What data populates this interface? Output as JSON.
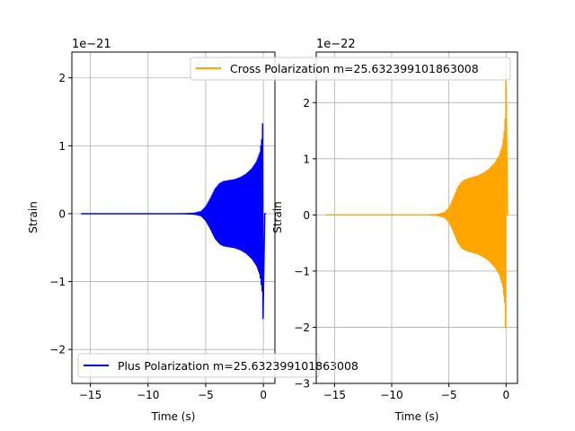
{
  "colors": {
    "left": "#0000ff",
    "right": "#ffa500",
    "grid": "#b0b0b0"
  },
  "chart_data": [
    {
      "type": "line",
      "xlabel": "Time (s)",
      "ylabel": "Strain",
      "offset_text": "1e−21",
      "xlim": [
        -16.6,
        1.0
      ],
      "ylim": [
        -2.5,
        2.38
      ],
      "xticks": [
        -15,
        -10,
        -5,
        0
      ],
      "xtick_labels": [
        "−15",
        "−10",
        "−5",
        "0"
      ],
      "yticks": [
        -2,
        -1,
        0,
        1,
        2
      ],
      "ytick_labels": [
        "−2",
        "−1",
        "0",
        "1",
        "2"
      ],
      "grid": true,
      "legend_position": "lower-left",
      "series": [
        {
          "name": "Plus Polarization m=25.632399101863008",
          "color": "#0000ff",
          "t_start": -15.8,
          "t_end": 0.0,
          "envelope": {
            "t": [
              -15.8,
              -7.0,
              -6.0,
              -5.4,
              -5.0,
              -4.6,
              -4.2,
              -3.8,
              -3.5,
              -3.2,
              -2.5,
              -2.0,
              -1.5,
              -1.0,
              -0.6,
              -0.3,
              -0.1,
              -0.02,
              0.0
            ],
            "amp": [
              0.0,
              0.0,
              0.006,
              0.03,
              0.1,
              0.22,
              0.36,
              0.44,
              0.47,
              0.48,
              0.5,
              0.53,
              0.58,
              0.66,
              0.76,
              0.9,
              1.15,
              1.6,
              2.1
            ]
          }
        }
      ]
    },
    {
      "type": "line",
      "xlabel": "Time (s)",
      "ylabel": "Strain",
      "offset_text": "1e−22",
      "xlim": [
        -16.6,
        1.0
      ],
      "ylim": [
        -3.0,
        2.9
      ],
      "xticks": [
        -15,
        -10,
        -5,
        0
      ],
      "xtick_labels": [
        "−15",
        "−10",
        "−5",
        "0"
      ],
      "yticks": [
        -3,
        -2,
        -1,
        0,
        1,
        2
      ],
      "ytick_labels": [
        "−3",
        "−2",
        "−1",
        "0",
        "1",
        "2"
      ],
      "grid": true,
      "legend_position": "upper-center",
      "series": [
        {
          "name": "Cross Polarization m=25.632399101863008",
          "color": "#ffa500",
          "t_start": -15.8,
          "t_end": 0.0,
          "envelope": {
            "t": [
              -15.8,
              -7.0,
              -6.0,
              -5.4,
              -5.0,
              -4.6,
              -4.2,
              -3.8,
              -3.5,
              -3.2,
              -2.5,
              -2.0,
              -1.5,
              -1.0,
              -0.6,
              -0.3,
              -0.1,
              -0.02,
              0.0
            ],
            "amp": [
              0.0,
              0.0,
              0.008,
              0.04,
              0.12,
              0.3,
              0.5,
              0.6,
              0.63,
              0.65,
              0.69,
              0.74,
              0.81,
              0.92,
              1.05,
              1.25,
              1.6,
              2.2,
              2.8
            ]
          }
        }
      ]
    }
  ]
}
